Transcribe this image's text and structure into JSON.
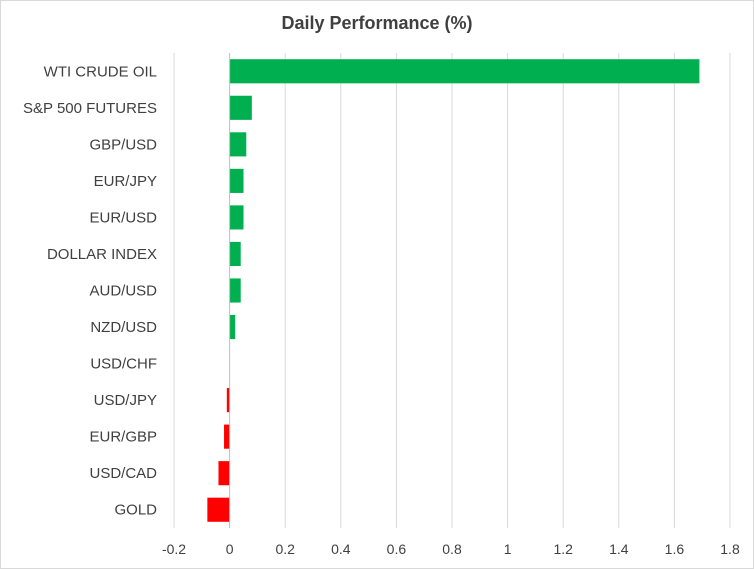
{
  "chart_data": {
    "type": "bar",
    "orientation": "horizontal",
    "title": "Daily Performance (%)",
    "xlabel": "",
    "ylabel": "",
    "xlim": [
      -0.2,
      1.8
    ],
    "xticks": [
      -0.2,
      0,
      0.2,
      0.4,
      0.6,
      0.8,
      1,
      1.2,
      1.4,
      1.6,
      1.8
    ],
    "xtick_labels": [
      "-0.2",
      "0",
      "0.2",
      "0.4",
      "0.6",
      "0.8",
      "1",
      "1.2",
      "1.4",
      "1.6",
      "1.8"
    ],
    "grid": "vertical",
    "legend": "none",
    "categories": [
      "WTI CRUDE OIL",
      "S&P 500 FUTURES",
      "GBP/USD",
      "EUR/JPY",
      "EUR/USD",
      "DOLLAR INDEX",
      "AUD/USD",
      "NZD/USD",
      "USD/CHF",
      "USD/JPY",
      "EUR/GBP",
      "USD/CAD",
      "GOLD"
    ],
    "values": [
      1.69,
      0.08,
      0.06,
      0.05,
      0.05,
      0.04,
      0.04,
      0.02,
      0.0,
      -0.01,
      -0.02,
      -0.04,
      -0.08
    ],
    "colors": {
      "positive": "#00b050",
      "negative": "#ff0000",
      "grid": "#d9d9d9",
      "axis": "#bfbfbf"
    }
  }
}
